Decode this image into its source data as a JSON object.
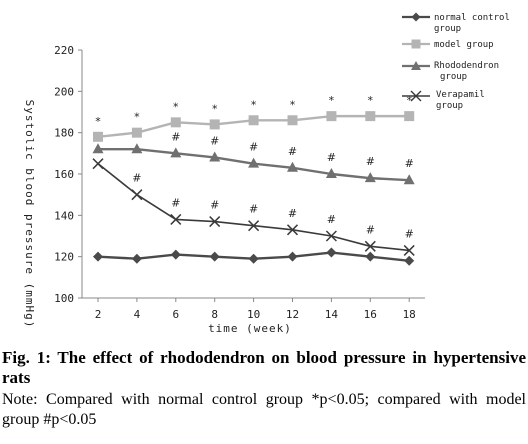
{
  "chart_data": {
    "type": "line",
    "xlabel": "time  (week)",
    "ylabel": "Systolic blood pressure  (mmHg)",
    "x": [
      2,
      4,
      6,
      8,
      10,
      12,
      14,
      16,
      18
    ],
    "x_ticks": [
      "2",
      "4",
      "6",
      "8",
      "10",
      "12",
      "14",
      "16",
      "18"
    ],
    "ylim": [
      100,
      220
    ],
    "y_ticks": [
      "100",
      "120",
      "140",
      "160",
      "180",
      "200",
      "220"
    ],
    "grid": false,
    "legend_position": "top-right",
    "series": [
      {
        "name": "normal control group",
        "marker": "diamond",
        "color": "#4a4a4a",
        "values": [
          120,
          119,
          121,
          120,
          119,
          120,
          122,
          120,
          118
        ],
        "annotations": []
      },
      {
        "name": "model group",
        "marker": "square",
        "color": "#b4b4b4",
        "values": [
          178,
          180,
          185,
          184,
          186,
          186,
          188,
          188,
          188
        ],
        "annotations": [
          "*",
          "*",
          "*",
          "*",
          "*",
          "*",
          "*",
          "*",
          "*"
        ]
      },
      {
        "name": "Rhododendron group",
        "marker": "triangle",
        "color": "#707070",
        "values": [
          172,
          172,
          170,
          168,
          165,
          163,
          160,
          158,
          157
        ],
        "annotations": [
          "",
          "",
          "#",
          "#",
          "#",
          "#",
          "#",
          "#",
          "#"
        ]
      },
      {
        "name": "Verapamil group",
        "marker": "cross",
        "color": "#3a3a3a",
        "values": [
          165,
          150,
          138,
          137,
          135,
          133,
          130,
          125,
          123
        ],
        "annotations": [
          "",
          "#",
          "#",
          "#",
          "#",
          "#",
          "#",
          "#",
          "#"
        ]
      }
    ]
  },
  "legend": {
    "normal": [
      "normal control",
      "group"
    ],
    "model": [
      "model group"
    ],
    "rhodo": [
      "Rhododendron",
      "group"
    ],
    "vera": [
      "Verapamil",
      "group"
    ]
  },
  "caption": {
    "title": "Fig. 1: The effect of rhododendron on blood pressure in hypertensive rats",
    "note": "Note: Compared with normal control group *p<0.05; compared with model group #p<0.05"
  }
}
